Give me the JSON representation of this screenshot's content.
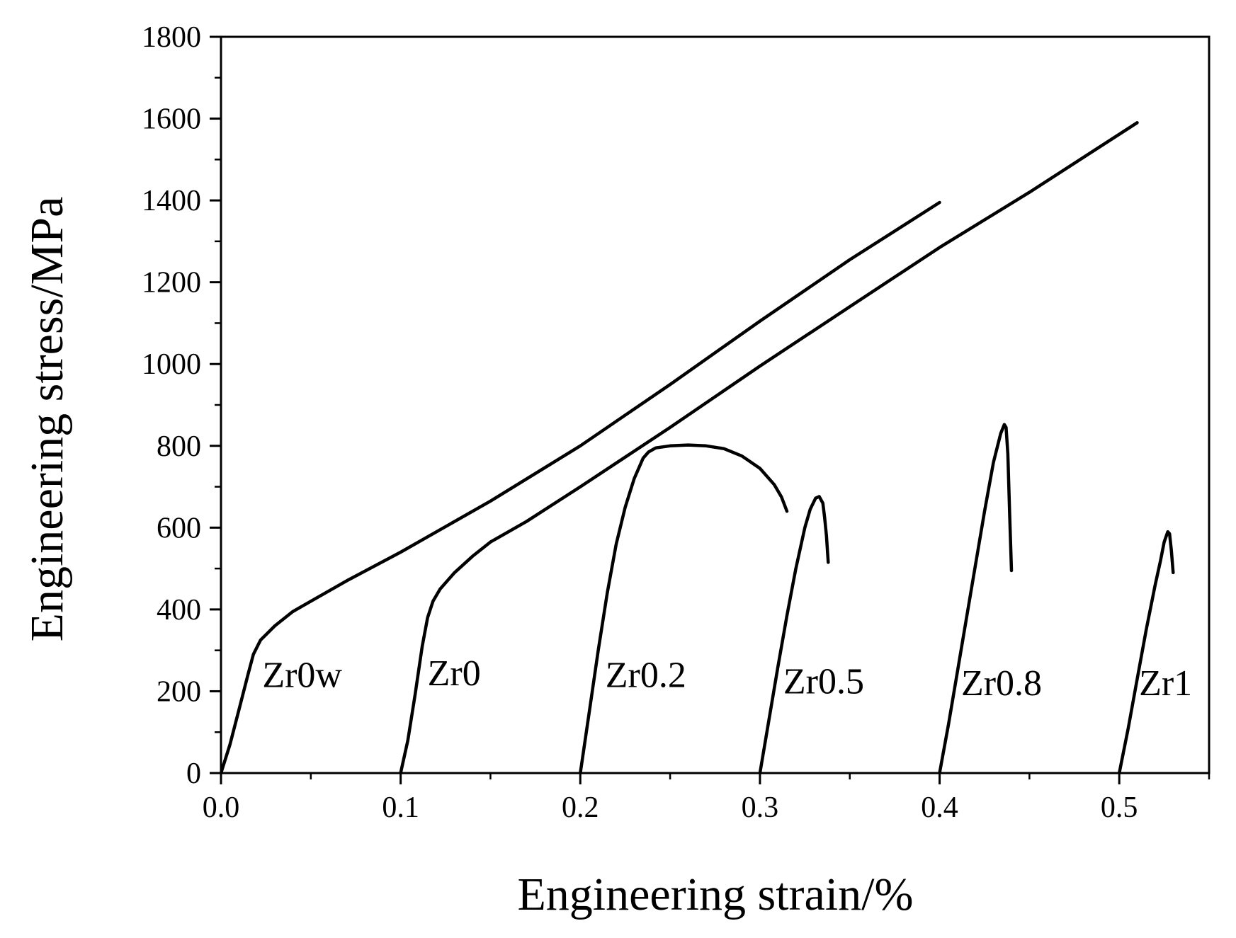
{
  "chart_data": {
    "type": "line",
    "title": "",
    "xlabel": "Engineering strain/%",
    "ylabel": "Engineering stress/MPa",
    "xlim": [
      0.0,
      0.55
    ],
    "ylim": [
      0,
      1800
    ],
    "xticks": [
      "0.0",
      "0.1",
      "0.2",
      "0.3",
      "0.4",
      "0.5"
    ],
    "yticks": [
      "0",
      "200",
      "400",
      "600",
      "800",
      "1000",
      "1200",
      "1400",
      "1600",
      "1800"
    ],
    "grid": false,
    "legend": "none",
    "line_color": "#000000",
    "series": [
      {
        "name": "Zr0w",
        "x": [
          0.0,
          0.005,
          0.01,
          0.015,
          0.018,
          0.022,
          0.03,
          0.04,
          0.05,
          0.07,
          0.1,
          0.15,
          0.2,
          0.25,
          0.3,
          0.35,
          0.4
        ],
        "y": [
          0,
          70,
          155,
          240,
          290,
          325,
          360,
          395,
          420,
          470,
          540,
          665,
          800,
          950,
          1105,
          1255,
          1395
        ]
      },
      {
        "name": "Zr0",
        "x": [
          0.1,
          0.104,
          0.108,
          0.112,
          0.115,
          0.118,
          0.122,
          0.13,
          0.14,
          0.15,
          0.17,
          0.2,
          0.25,
          0.3,
          0.35,
          0.4,
          0.45,
          0.51
        ],
        "y": [
          0,
          80,
          190,
          310,
          380,
          420,
          450,
          490,
          530,
          565,
          615,
          700,
          845,
          995,
          1140,
          1285,
          1420,
          1590
        ]
      },
      {
        "name": "Zr0.2",
        "x": [
          0.2,
          0.205,
          0.21,
          0.215,
          0.22,
          0.225,
          0.23,
          0.235,
          0.238,
          0.242,
          0.25,
          0.26,
          0.27,
          0.28,
          0.29,
          0.3,
          0.308,
          0.312,
          0.315
        ],
        "y": [
          0,
          150,
          300,
          440,
          560,
          650,
          720,
          770,
          785,
          795,
          800,
          802,
          800,
          793,
          775,
          745,
          705,
          675,
          640
        ]
      },
      {
        "name": "Zr0.5",
        "x": [
          0.3,
          0.305,
          0.31,
          0.315,
          0.32,
          0.325,
          0.328,
          0.331,
          0.333,
          0.335,
          0.336,
          0.337,
          0.338
        ],
        "y": [
          0,
          130,
          260,
          385,
          500,
          600,
          645,
          672,
          676,
          660,
          625,
          580,
          515
        ]
      },
      {
        "name": "Zr0.8",
        "x": [
          0.4,
          0.405,
          0.41,
          0.415,
          0.42,
          0.425,
          0.43,
          0.434,
          0.436,
          0.437,
          0.438,
          0.439,
          0.44
        ],
        "y": [
          0,
          120,
          250,
          380,
          510,
          640,
          760,
          830,
          852,
          845,
          780,
          630,
          495
        ]
      },
      {
        "name": "Zr1",
        "x": [
          0.5,
          0.505,
          0.51,
          0.515,
          0.52,
          0.523,
          0.525,
          0.527,
          0.528,
          0.529,
          0.53
        ],
        "y": [
          0,
          110,
          230,
          350,
          460,
          520,
          565,
          590,
          585,
          545,
          490
        ]
      }
    ],
    "annotations": [
      {
        "text": "Zr0w",
        "x": 0.023,
        "y": 210
      },
      {
        "text": "Zr0",
        "x": 0.115,
        "y": 215
      },
      {
        "text": "Zr0.2",
        "x": 0.214,
        "y": 210
      },
      {
        "text": "Zr0.5",
        "x": 0.313,
        "y": 195
      },
      {
        "text": "Zr0.8",
        "x": 0.412,
        "y": 190
      },
      {
        "text": "Zr1",
        "x": 0.511,
        "y": 190
      }
    ]
  }
}
